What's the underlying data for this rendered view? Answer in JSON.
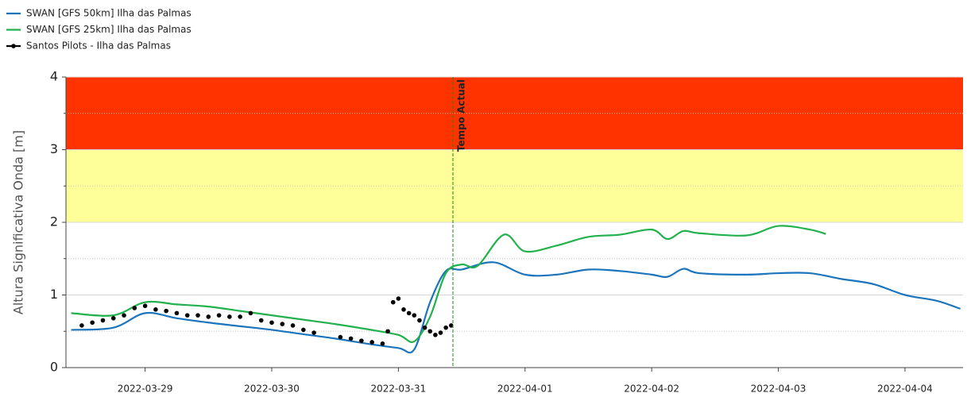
{
  "chart_data": {
    "type": "line",
    "ylabel": "Altura Significativa Onda [m]",
    "xlim": [
      "2022-03-28T09:00",
      "2022-04-04T11:00"
    ],
    "xticks": [
      "2022-03-29",
      "2022-03-30",
      "2022-03-31",
      "2022-04-01",
      "2022-04-02",
      "2022-04-03",
      "2022-04-04"
    ],
    "ylim": [
      0,
      4
    ],
    "yticks": [
      0,
      1,
      2,
      3,
      4
    ],
    "minor_yticks": [
      0.5,
      1.5,
      2.5,
      3.5
    ],
    "grid": true,
    "bands": [
      {
        "from": 3,
        "to": 4,
        "color": "#ff3300"
      },
      {
        "from": 2,
        "to": 3,
        "color": "#ffff99"
      }
    ],
    "annotation": {
      "x": "2022-03-31T10:20",
      "text": "Tempo Actual",
      "color": "#1a8a1a"
    },
    "legend": "top-left",
    "series": [
      {
        "name": "SWAN [GFS 50km] Ilha das Palmas",
        "color": "#1c75bc",
        "marker": "none",
        "x": [
          "2022-03-28T10:00",
          "2022-03-28T18:00",
          "2022-03-29T00:00",
          "2022-03-29T06:00",
          "2022-03-29T12:00",
          "2022-03-29T18:00",
          "2022-03-30T00:00",
          "2022-03-30T06:00",
          "2022-03-30T12:00",
          "2022-03-30T18:00",
          "2022-03-31T00:00",
          "2022-03-31T03:00",
          "2022-03-31T06:00",
          "2022-03-31T09:00",
          "2022-03-31T12:00",
          "2022-03-31T18:00",
          "2022-04-01T00:00",
          "2022-04-01T06:00",
          "2022-04-01T12:00",
          "2022-04-01T18:00",
          "2022-04-02T00:00",
          "2022-04-02T03:00",
          "2022-04-02T06:00",
          "2022-04-02T09:00",
          "2022-04-02T18:00",
          "2022-04-03T00:00",
          "2022-04-03T06:00",
          "2022-04-03T12:00",
          "2022-04-03T18:00",
          "2022-04-04T00:00",
          "2022-04-04T06:00",
          "2022-04-04T10:30"
        ],
        "values": [
          0.52,
          0.55,
          0.75,
          0.68,
          0.62,
          0.57,
          0.52,
          0.46,
          0.4,
          0.33,
          0.27,
          0.25,
          0.9,
          1.33,
          1.35,
          1.45,
          1.28,
          1.28,
          1.35,
          1.33,
          1.28,
          1.25,
          1.36,
          1.3,
          1.28,
          1.3,
          1.3,
          1.22,
          1.15,
          1.0,
          0.92,
          0.81
        ]
      },
      {
        "name": "SWAN [GFS 25km] Ilha das Palmas",
        "color": "#22b14c",
        "marker": "none",
        "x": [
          "2022-03-28T10:00",
          "2022-03-28T18:00",
          "2022-03-29T00:00",
          "2022-03-29T06:00",
          "2022-03-29T12:00",
          "2022-03-29T18:00",
          "2022-03-30T00:00",
          "2022-03-30T06:00",
          "2022-03-30T12:00",
          "2022-03-30T18:00",
          "2022-03-31T00:00",
          "2022-03-31T03:00",
          "2022-03-31T06:00",
          "2022-03-31T09:00",
          "2022-03-31T12:00",
          "2022-03-31T15:00",
          "2022-03-31T20:00",
          "2022-04-01T00:00",
          "2022-04-01T06:00",
          "2022-04-01T12:00",
          "2022-04-01T18:00",
          "2022-04-02T00:00",
          "2022-04-02T03:00",
          "2022-04-02T06:00",
          "2022-04-02T09:00",
          "2022-04-02T18:00",
          "2022-04-03T00:00",
          "2022-04-03T06:00",
          "2022-04-03T09:00"
        ],
        "values": [
          0.75,
          0.72,
          0.9,
          0.87,
          0.84,
          0.78,
          0.72,
          0.66,
          0.6,
          0.53,
          0.45,
          0.36,
          0.7,
          1.3,
          1.42,
          1.4,
          1.83,
          1.6,
          1.68,
          1.8,
          1.83,
          1.9,
          1.77,
          1.88,
          1.85,
          1.82,
          1.95,
          1.9,
          1.84
        ]
      },
      {
        "name": "Santos Pilots - Ilha das Palmas",
        "color": "#000000",
        "marker": "dot",
        "x": [
          "2022-03-28T12:00",
          "2022-03-28T14:00",
          "2022-03-28T16:00",
          "2022-03-28T18:00",
          "2022-03-28T20:00",
          "2022-03-28T22:00",
          "2022-03-29T00:00",
          "2022-03-29T02:00",
          "2022-03-29T04:00",
          "2022-03-29T06:00",
          "2022-03-29T08:00",
          "2022-03-29T10:00",
          "2022-03-29T12:00",
          "2022-03-29T14:00",
          "2022-03-29T16:00",
          "2022-03-29T18:00",
          "2022-03-29T20:00",
          "2022-03-29T22:00",
          "2022-03-30T00:00",
          "2022-03-30T02:00",
          "2022-03-30T04:00",
          "2022-03-30T06:00",
          "2022-03-30T08:00",
          "2022-03-30T13:00",
          "2022-03-30T15:00",
          "2022-03-30T17:00",
          "2022-03-30T19:00",
          "2022-03-30T21:00",
          "2022-03-30T22:00",
          "2022-03-30T23:00",
          "2022-03-31T00:00",
          "2022-03-31T01:00",
          "2022-03-31T02:00",
          "2022-03-31T03:00",
          "2022-03-31T04:00",
          "2022-03-31T05:00",
          "2022-03-31T06:00",
          "2022-03-31T07:00",
          "2022-03-31T08:00",
          "2022-03-31T09:00",
          "2022-03-31T10:00"
        ],
        "values": [
          0.58,
          0.62,
          0.65,
          0.68,
          0.72,
          0.82,
          0.85,
          0.8,
          0.78,
          0.75,
          0.72,
          0.72,
          0.7,
          0.72,
          0.7,
          0.7,
          0.75,
          0.65,
          0.62,
          0.6,
          0.58,
          0.52,
          0.48,
          0.42,
          0.4,
          0.37,
          0.35,
          0.33,
          0.5,
          0.9,
          0.95,
          0.8,
          0.75,
          0.72,
          0.65,
          0.55,
          0.5,
          0.45,
          0.48,
          0.55,
          0.58
        ]
      }
    ]
  }
}
